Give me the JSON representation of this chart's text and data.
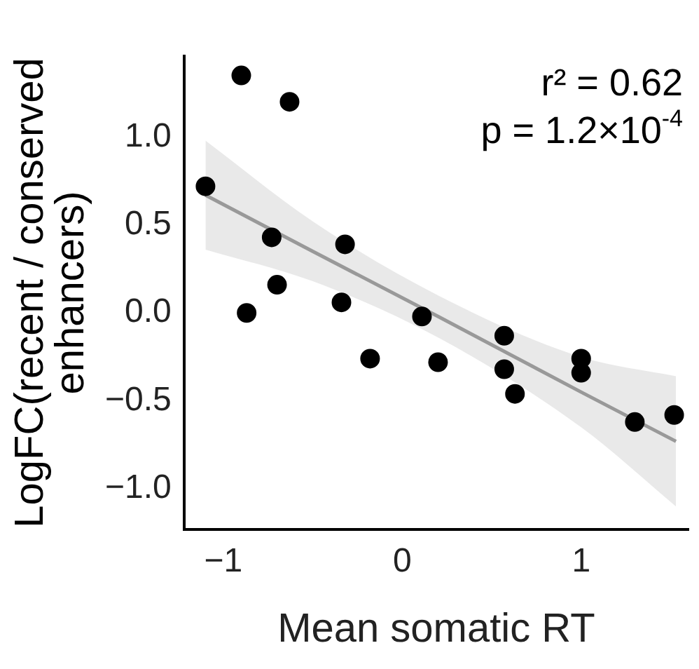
{
  "chart_data": {
    "type": "scatter",
    "xlabel": "Mean somatic RT",
    "ylabel": "LogFC(recent / conserved\nenhancers)",
    "annotations": [
      "r² = 0.62",
      "p = 1.2×10$^{-4}$"
    ],
    "xlim": [
      -1.22,
      1.6
    ],
    "ylim": [
      -1.23,
      1.46
    ],
    "xticks": [
      -1,
      0,
      1
    ],
    "yticks": [
      {
        "value": -1,
        "label": "−1.0"
      },
      {
        "value": -0.5,
        "label": "−0.5"
      },
      {
        "value": 0,
        "label": "0.0"
      },
      {
        "value": 0.5,
        "label": "0.5"
      },
      {
        "value": 1,
        "label": "1.0"
      }
    ],
    "grid": false,
    "legend": false,
    "series": [
      {
        "marker": "circle",
        "color": "#000000",
        "x": [
          -1.1,
          -0.9,
          -0.63,
          -0.73,
          -0.32,
          -0.7,
          -0.87,
          -0.34,
          -0.18,
          0.11,
          0.2,
          0.57,
          0.57,
          0.63,
          1.0,
          1.0,
          1.3,
          1.52
        ],
        "values": [
          0.72,
          1.35,
          1.2,
          0.43,
          0.39,
          0.16,
          0.0,
          0.06,
          -0.26,
          -0.02,
          -0.28,
          -0.13,
          -0.32,
          -0.46,
          -0.26,
          -0.34,
          -0.62,
          -0.58
        ]
      },
      {
        "type": "line",
        "color": "#999999",
        "x": [
          -1.1,
          -0.5,
          0.2,
          1.0,
          1.53
        ],
        "values": [
          0.67,
          0.35,
          -0.02,
          -0.45,
          -0.73
        ],
        "lower": [
          0.36,
          0.18,
          -0.14,
          -0.65,
          -1.1
        ],
        "upper": [
          0.98,
          0.52,
          0.1,
          -0.25,
          -0.36
        ]
      }
    ]
  }
}
